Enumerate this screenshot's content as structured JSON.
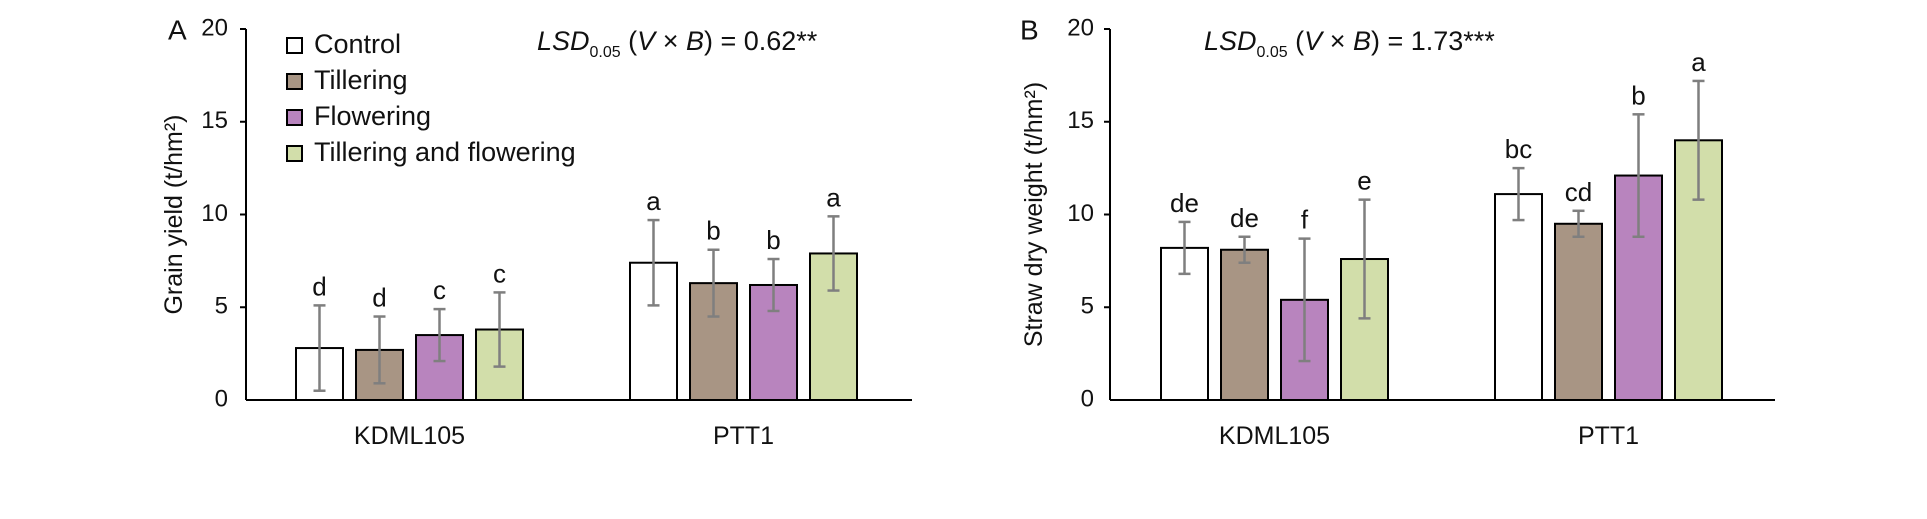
{
  "chart_data": [
    {
      "type": "bar",
      "panel_label": "A",
      "ylabel": "Grain yield (t/hm²)",
      "xlabel": "",
      "ylim": [
        0,
        20
      ],
      "yticks": [
        0,
        5,
        10,
        15,
        20
      ],
      "categories": [
        "KDML105",
        "PTT1"
      ],
      "lsd": {
        "prefix": "LSD",
        "sub": "0.05",
        "factors": "(V × B)",
        "value": "= 0.62**"
      },
      "legend_position": "top-left",
      "series": [
        {
          "name": "Control",
          "color": "#ffffff",
          "values": [
            2.8,
            7.4
          ],
          "errors": [
            2.3,
            2.3
          ],
          "letters": [
            "d",
            "a"
          ]
        },
        {
          "name": "Tillering",
          "color": "#a89584",
          "values": [
            2.7,
            6.3
          ],
          "errors": [
            1.8,
            1.8
          ],
          "letters": [
            "d",
            "b"
          ]
        },
        {
          "name": "Flowering",
          "color": "#b884be",
          "values": [
            3.5,
            6.2
          ],
          "errors": [
            1.4,
            1.4
          ],
          "letters": [
            "c",
            "b"
          ]
        },
        {
          "name": "Tillering and flowering",
          "color": "#d2deaa",
          "values": [
            3.8,
            7.9
          ],
          "errors": [
            2.0,
            2.0
          ],
          "letters": [
            "c",
            "a"
          ]
        }
      ]
    },
    {
      "type": "bar",
      "panel_label": "B",
      "ylabel": "Straw dry weight (t/hm²)",
      "xlabel": "",
      "ylim": [
        0,
        20
      ],
      "yticks": [
        0,
        5,
        10,
        15,
        20
      ],
      "categories": [
        "KDML105",
        "PTT1"
      ],
      "lsd": {
        "prefix": "LSD",
        "sub": "0.05",
        "factors": "(V × B)",
        "value": "= 1.73***"
      },
      "series": [
        {
          "name": "Control",
          "color": "#ffffff",
          "values": [
            8.2,
            11.1
          ],
          "errors": [
            1.4,
            1.4
          ],
          "letters": [
            "de",
            "bc"
          ]
        },
        {
          "name": "Tillering",
          "color": "#a89584",
          "values": [
            8.1,
            9.5
          ],
          "errors": [
            0.7,
            0.7
          ],
          "letters": [
            "de",
            "cd"
          ]
        },
        {
          "name": "Flowering",
          "color": "#b884be",
          "values": [
            5.4,
            12.1
          ],
          "errors": [
            3.3,
            3.3
          ],
          "letters": [
            "f",
            "b"
          ]
        },
        {
          "name": "Tillering and flowering",
          "color": "#d2deaa",
          "values": [
            7.6,
            14.0
          ],
          "errors": [
            3.2,
            3.2
          ],
          "letters": [
            "e",
            "a"
          ]
        }
      ]
    }
  ]
}
